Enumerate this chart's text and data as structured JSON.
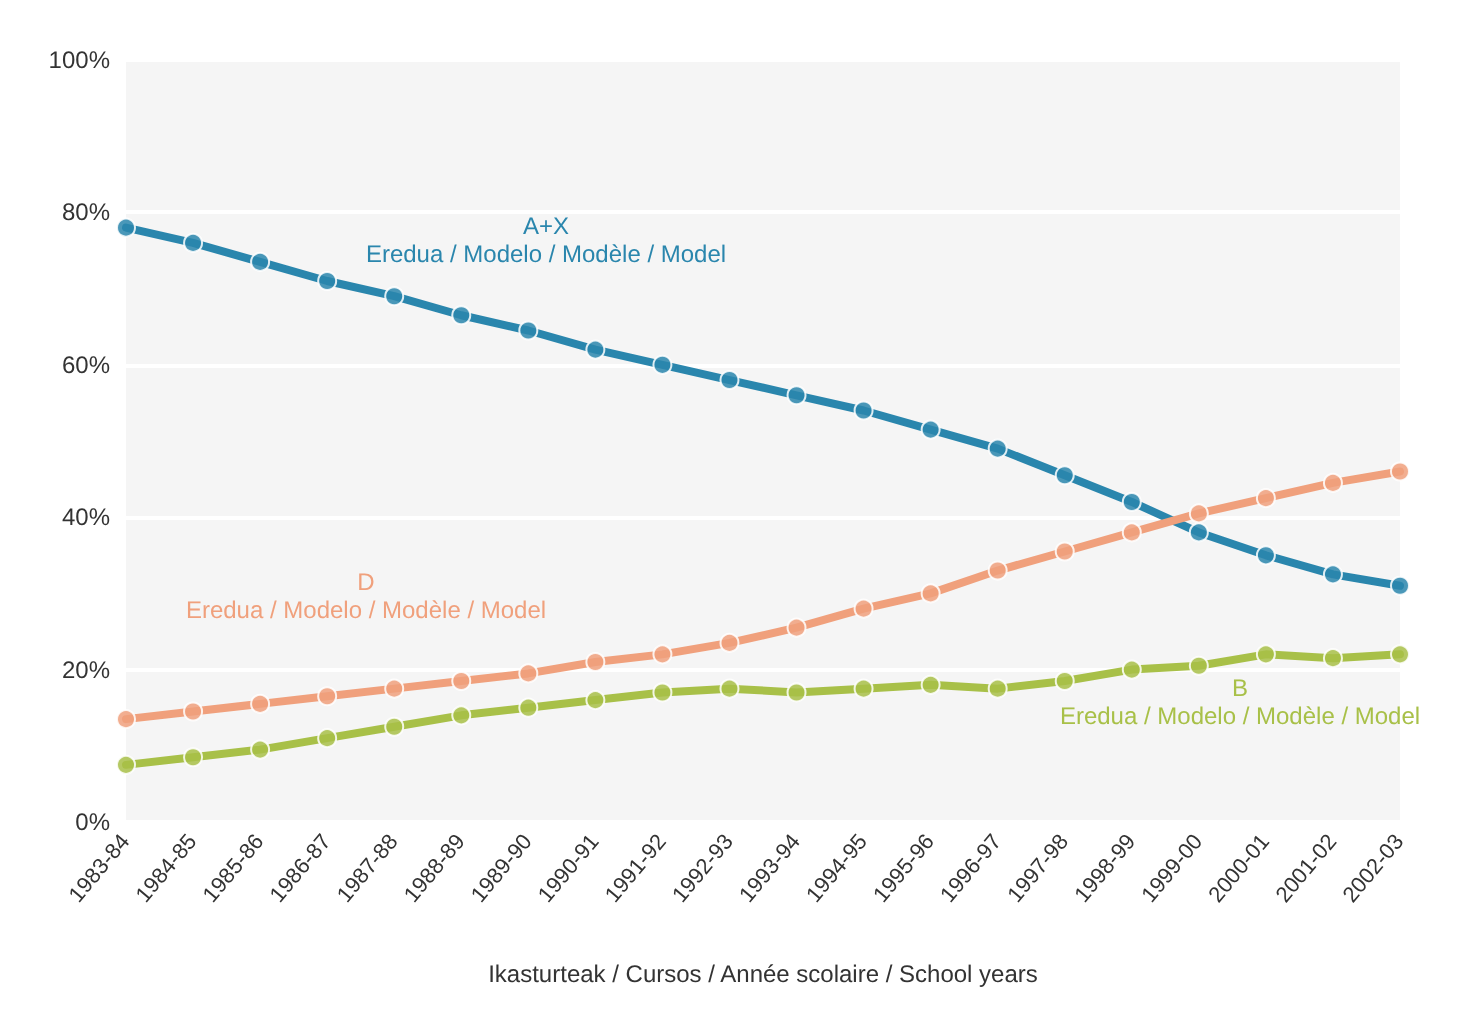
{
  "chart_data": {
    "type": "line",
    "xlabel": "Ikasturteak / Cursos / Année scolaire / School years",
    "categories": [
      "1983-84",
      "1984-85",
      "1985-86",
      "1986-87",
      "1987-88",
      "1988-89",
      "1989-90",
      "1990-91",
      "1991-92",
      "1992-93",
      "1993-94",
      "1994-95",
      "1995-96",
      "1996-97",
      "1997-98",
      "1998-99",
      "1999-00",
      "2000-01",
      "2001-02",
      "2002-03"
    ],
    "series": [
      {
        "name": "A+X\nEredua / Modelo / Modèle / Model",
        "color": "#2a86ad",
        "values": [
          78,
          76,
          73.5,
          71,
          69,
          66.5,
          64.5,
          62,
          60,
          58,
          56,
          54,
          51.5,
          49,
          45.5,
          42,
          38,
          35,
          32.5,
          31
        ]
      },
      {
        "name": "D\nEredua / Modelo / Modèle / Model",
        "color": "#f0a07c",
        "values": [
          13.5,
          14.5,
          15.5,
          16.5,
          17.5,
          18.5,
          19.5,
          21,
          22,
          23.5,
          25.5,
          28,
          30,
          33,
          35.5,
          38,
          40.5,
          42.5,
          44.5,
          46
        ]
      },
      {
        "name": "B\nEredua / Modelo / Modèle / Model",
        "color": "#a8c048",
        "values": [
          7.5,
          8.5,
          9.5,
          11,
          12.5,
          14,
          15,
          16,
          17,
          17.5,
          17,
          17.5,
          18,
          17.5,
          18.5,
          20,
          20.5,
          22,
          21.5,
          22
        ]
      }
    ],
    "ylim": [
      0,
      100
    ],
    "yticks": [
      {
        "value": 0,
        "label": "0%"
      },
      {
        "value": 20,
        "label": "20%"
      },
      {
        "value": 40,
        "label": "40%"
      },
      {
        "value": 60,
        "label": "60%"
      },
      {
        "value": 80,
        "label": "80%"
      },
      {
        "value": 100,
        "label": "100%"
      }
    ],
    "grid": "y",
    "marker": "circle",
    "line_style": "solid"
  }
}
